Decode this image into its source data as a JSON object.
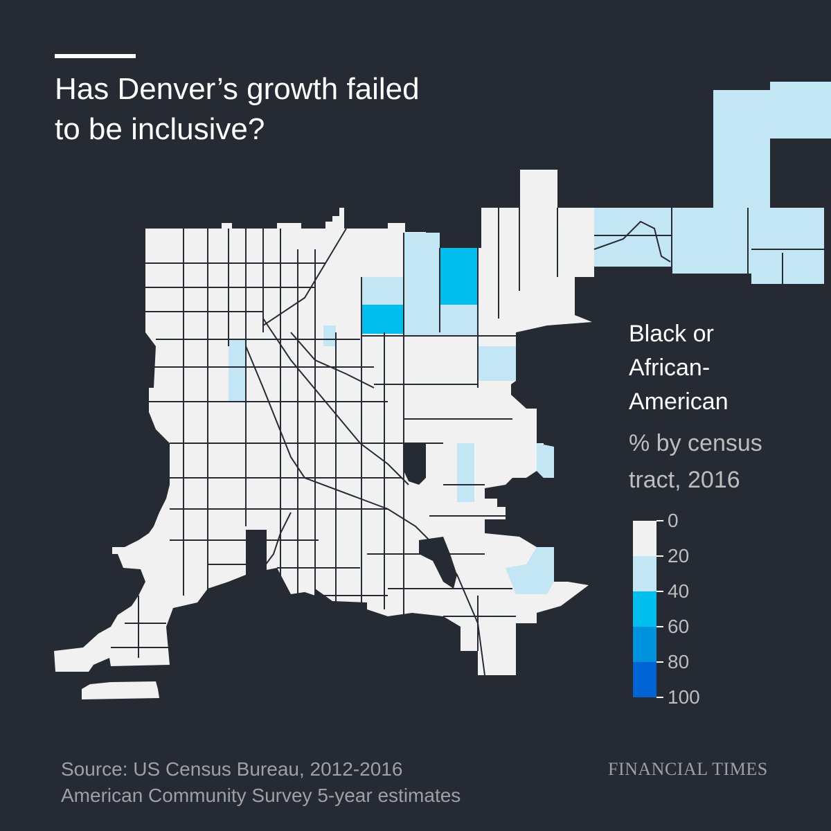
{
  "title_line1": "Has Denver’s growth failed",
  "title_line2": "to be inclusive?",
  "legend": {
    "title_line1": "Black or",
    "title_line2": "African-",
    "title_line3": "American",
    "subtitle_line1": "% by census",
    "subtitle_line2": "tract, 2016",
    "labels": [
      "0",
      "20",
      "40",
      "60",
      "80",
      "100"
    ],
    "colors": [
      "#f1f1f1",
      "#c2e6f3",
      "#00bfee",
      "#0093dd",
      "#0064d4"
    ]
  },
  "source_line1": "Source: US Census Bureau, 2012-2016",
  "source_line2": "American Community Survey 5-year estimates",
  "brand": "FINANCIAL TIMES",
  "colors": {
    "background": "#262a33",
    "tract_0_20": "#f1f1f1",
    "tract_20_40": "#c2e6f3",
    "tract_40_60": "#00bfee",
    "tract_border": "#262a33"
  }
}
